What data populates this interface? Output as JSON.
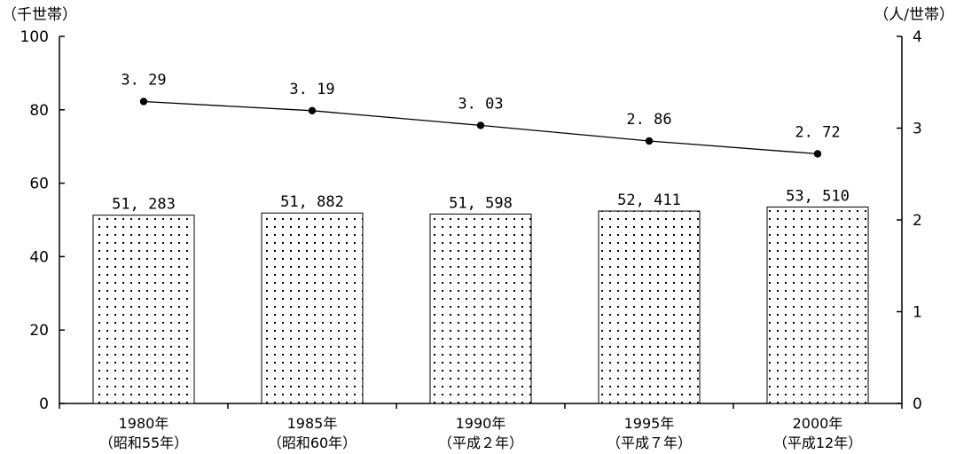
{
  "chart_data": {
    "type": "bar",
    "categories": [
      "1980年",
      "1985年",
      "1990年",
      "1995年",
      "2000年"
    ],
    "category_sublabels": [
      "（昭和55年）",
      "（昭和60年）",
      "（平成２年）",
      "（平成７年）",
      "（平成12年）"
    ],
    "y_left_unit": "（千世帯）",
    "y_right_unit": "（人/世帯）",
    "ylim_left": [
      0,
      100
    ],
    "ylim_right": [
      0,
      4
    ],
    "yticks_left": [
      0,
      20,
      40,
      60,
      80,
      100
    ],
    "yticks_right": [
      0,
      1,
      2,
      3,
      4
    ],
    "grid": false,
    "bar_pattern": "dotted",
    "series": [
      {
        "type": "bar",
        "axis": "left",
        "values": [
          51.283,
          51.882,
          51.598,
          52.411,
          53.51
        ],
        "labels": [
          "51, 283",
          "51, 882",
          "51, 598",
          "52, 411",
          "53, 510"
        ]
      },
      {
        "type": "line",
        "axis": "right",
        "values": [
          3.29,
          3.19,
          3.03,
          2.86,
          2.72
        ],
        "labels": [
          "3. 29",
          "3. 19",
          "3. 03",
          "2. 86",
          "2. 72"
        ]
      }
    ]
  }
}
